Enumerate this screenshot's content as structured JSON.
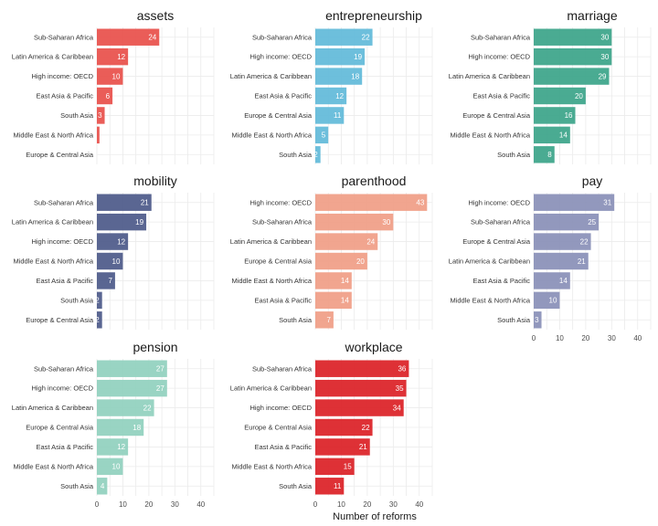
{
  "chart_data": {
    "type": "bar",
    "orientation": "horizontal",
    "xlabel": "Number of reforms",
    "ylabel": "",
    "xlim": [
      0,
      45
    ],
    "xticks": [
      0,
      10,
      20,
      30,
      40
    ],
    "grid": true,
    "panels": [
      {
        "title": "assets",
        "color": "#E8514B",
        "categories": [
          "Sub-Saharan Africa",
          "Latin America & Caribbean",
          "High income: OECD",
          "East Asia & Pacific",
          "South Asia",
          "Middle East & North Africa",
          "Europe & Central Asia"
        ],
        "values": [
          24,
          12,
          10,
          6,
          3,
          1,
          0
        ],
        "labels": [
          "24",
          "12",
          "10",
          "6",
          "3",
          "",
          ""
        ]
      },
      {
        "title": "entrepreneurship",
        "color": "#62BAD9",
        "categories": [
          "Sub-Saharan Africa",
          "High income: OECD",
          "Latin America & Caribbean",
          "East Asia & Pacific",
          "Europe & Central Asia",
          "Middle East & North Africa",
          "South Asia"
        ],
        "values": [
          22,
          19,
          18,
          12,
          11,
          5,
          2
        ],
        "labels": [
          "22",
          "19",
          "18",
          "12",
          "11",
          "5",
          "2"
        ]
      },
      {
        "title": "marriage",
        "color": "#3CA58A",
        "categories": [
          "Sub-Saharan Africa",
          "High income: OECD",
          "Latin America & Caribbean",
          "East Asia & Pacific",
          "Europe & Central Asia",
          "Middle East & North Africa",
          "South Asia"
        ],
        "values": [
          30,
          30,
          29,
          20,
          16,
          14,
          8
        ],
        "labels": [
          "30",
          "30",
          "29",
          "20",
          "16",
          "14",
          "8"
        ]
      },
      {
        "title": "mobility",
        "color": "#4E5A8A",
        "categories": [
          "Sub-Saharan Africa",
          "Latin America & Caribbean",
          "High income: OECD",
          "Middle East & North Africa",
          "East Asia & Pacific",
          "South Asia",
          "Europe & Central Asia"
        ],
        "values": [
          21,
          19,
          12,
          10,
          7,
          2,
          2
        ],
        "labels": [
          "21",
          "19",
          "12",
          "10",
          "7",
          "2",
          "2"
        ]
      },
      {
        "title": "parenthood",
        "color": "#F09E87",
        "categories": [
          "High income: OECD",
          "Sub-Saharan Africa",
          "Latin America & Caribbean",
          "Europe & Central Asia",
          "Middle East & North Africa",
          "East Asia & Pacific",
          "South Asia"
        ],
        "values": [
          43,
          30,
          24,
          20,
          14,
          14,
          7
        ],
        "labels": [
          "43",
          "30",
          "24",
          "20",
          "14",
          "14",
          "7"
        ]
      },
      {
        "title": "pay",
        "color": "#8A90B8",
        "categories": [
          "High income: OECD",
          "Sub-Saharan Africa",
          "Europe & Central Asia",
          "Latin America & Caribbean",
          "East Asia & Pacific",
          "Middle East & North Africa",
          "South Asia"
        ],
        "values": [
          31,
          25,
          22,
          21,
          14,
          10,
          3
        ],
        "labels": [
          "31",
          "25",
          "22",
          "21",
          "14",
          "10",
          "3"
        ]
      },
      {
        "title": "pension",
        "color": "#91D1BE",
        "categories": [
          "Sub-Saharan Africa",
          "High income: OECD",
          "Latin America & Caribbean",
          "Europe & Central Asia",
          "East Asia & Pacific",
          "Middle East & North Africa",
          "South Asia"
        ],
        "values": [
          27,
          27,
          22,
          18,
          12,
          10,
          4
        ],
        "labels": [
          "27",
          "27",
          "22",
          "18",
          "12",
          "10",
          "4"
        ]
      },
      {
        "title": "workplace",
        "color": "#DC2127",
        "categories": [
          "Sub-Saharan Africa",
          "Latin America & Caribbean",
          "High income: OECD",
          "Europe & Central Asia",
          "East Asia & Pacific",
          "Middle East & North Africa",
          "South Asia"
        ],
        "values": [
          36,
          35,
          34,
          22,
          21,
          15,
          11
        ],
        "labels": [
          "36",
          "35",
          "34",
          "22",
          "21",
          "15",
          "11"
        ]
      }
    ]
  }
}
